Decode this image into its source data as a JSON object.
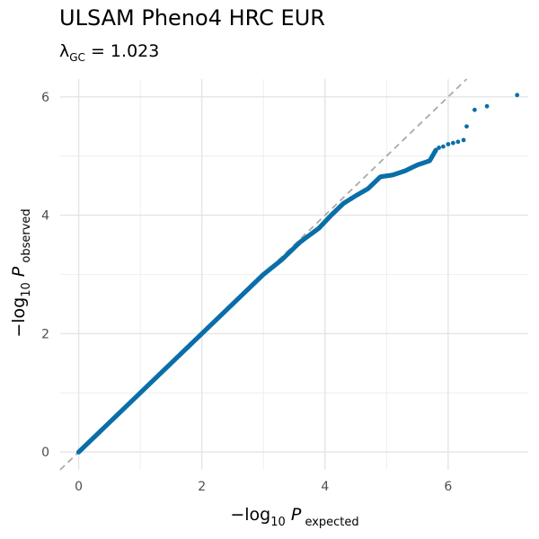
{
  "chart_data": {
    "type": "scatter",
    "title": "ULSAM Pheno4 HRC EUR",
    "subtitle": {
      "lambda_symbol": "λ",
      "lambda_sub": "GC",
      "lambda_text": " = 1.023"
    },
    "xlabel": {
      "prefix": "−log",
      "base": "10",
      "var": "P",
      "sub": "expected"
    },
    "ylabel": {
      "prefix": "−log",
      "base": "10",
      "var": "P",
      "sub": "observed"
    },
    "xlim": [
      -0.3,
      7.3
    ],
    "ylim": [
      -0.3,
      6.3
    ],
    "x_ticks": [
      0,
      2,
      4,
      6
    ],
    "y_ticks": [
      0,
      2,
      4,
      6
    ],
    "x_tick_labels": [
      "0",
      "2",
      "4",
      "6"
    ],
    "y_tick_labels": [
      "0",
      "2",
      "4",
      "6"
    ],
    "grid": true,
    "reference_line": {
      "slope": 1,
      "intercept": 0,
      "style": "dashed",
      "color": "#aaaaaa"
    },
    "point_color": "#0a6fa8",
    "curve": [
      {
        "x": 0.0,
        "y": 0.0
      },
      {
        "x": 0.5,
        "y": 0.5
      },
      {
        "x": 1.0,
        "y": 1.0
      },
      {
        "x": 1.5,
        "y": 1.5
      },
      {
        "x": 2.0,
        "y": 2.0
      },
      {
        "x": 2.5,
        "y": 2.5
      },
      {
        "x": 3.0,
        "y": 3.0
      },
      {
        "x": 3.3,
        "y": 3.25
      },
      {
        "x": 3.6,
        "y": 3.55
      },
      {
        "x": 3.9,
        "y": 3.78
      },
      {
        "x": 4.1,
        "y": 4.0
      },
      {
        "x": 4.3,
        "y": 4.2
      },
      {
        "x": 4.5,
        "y": 4.33
      },
      {
        "x": 4.7,
        "y": 4.45
      },
      {
        "x": 4.9,
        "y": 4.65
      },
      {
        "x": 5.1,
        "y": 4.68
      },
      {
        "x": 5.3,
        "y": 4.75
      },
      {
        "x": 5.5,
        "y": 4.85
      },
      {
        "x": 5.7,
        "y": 4.92
      },
      {
        "x": 5.8,
        "y": 5.1
      }
    ],
    "tail_points": [
      {
        "x": 5.85,
        "y": 5.14
      },
      {
        "x": 5.92,
        "y": 5.16
      },
      {
        "x": 6.0,
        "y": 5.2
      },
      {
        "x": 6.08,
        "y": 5.22
      },
      {
        "x": 6.16,
        "y": 5.24
      },
      {
        "x": 6.25,
        "y": 5.27
      },
      {
        "x": 6.3,
        "y": 5.5
      },
      {
        "x": 6.43,
        "y": 5.78
      },
      {
        "x": 6.63,
        "y": 5.84
      },
      {
        "x": 7.12,
        "y": 6.03
      }
    ]
  }
}
